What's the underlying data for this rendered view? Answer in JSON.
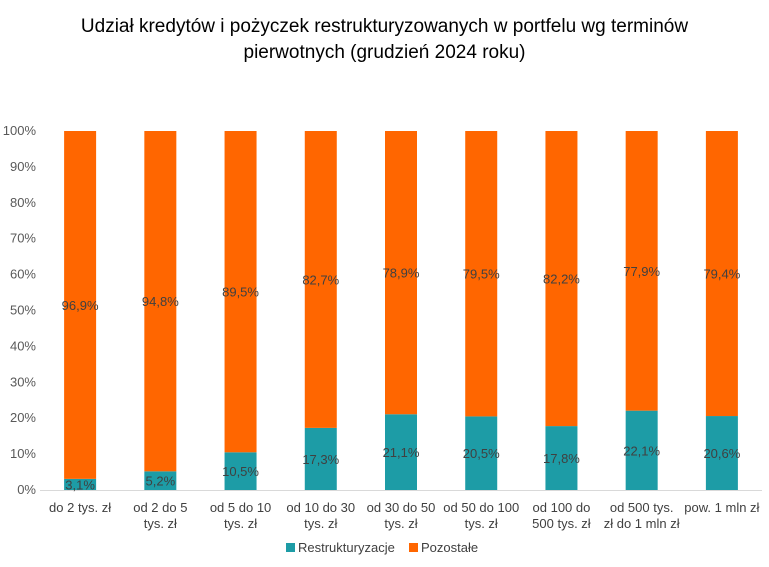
{
  "chart_data": {
    "type": "bar",
    "stacked": true,
    "title_line1": "Udział kredytów i pożyczek restrukturyzowanych w portfelu wg terminów",
    "title_line2": "pierwotnych (grudzień 2024 roku)",
    "categories": [
      [
        "do 2 tys. zł"
      ],
      [
        "od 2 do 5",
        "tys. zł"
      ],
      [
        "od 5 do 10",
        "tys. zł"
      ],
      [
        "od 10 do 30",
        "tys. zł"
      ],
      [
        "od 30 do 50",
        "tys. zł"
      ],
      [
        "od 50 do 100",
        "tys. zł"
      ],
      [
        "od 100 do",
        "500 tys. zł"
      ],
      [
        "od 500 tys.",
        "zł do 1 mln zł"
      ],
      [
        "pow. 1 mln zł"
      ]
    ],
    "series": [
      {
        "name": "Restrukturyzacje",
        "color": "#1d9ca6",
        "values": [
          3.1,
          5.2,
          10.5,
          17.3,
          21.1,
          20.5,
          17.8,
          22.1,
          20.6
        ],
        "labels": [
          "3,1%",
          "5,2%",
          "10,5%",
          "17,3%",
          "21,1%",
          "20,5%",
          "17,8%",
          "22,1%",
          "20,6%"
        ]
      },
      {
        "name": "Pozostałe",
        "color": "#ff6600",
        "values": [
          96.9,
          94.8,
          89.5,
          82.7,
          78.9,
          79.5,
          82.2,
          77.9,
          79.4
        ],
        "labels": [
          "96,9%",
          "94,8%",
          "89,5%",
          "82,7%",
          "78,9%",
          "79,5%",
          "82,2%",
          "77,9%",
          "79,4%"
        ]
      }
    ],
    "yticks": [
      "0%",
      "10%",
      "20%",
      "30%",
      "40%",
      "50%",
      "60%",
      "70%",
      "80%",
      "90%",
      "100%"
    ],
    "ylim": [
      0,
      100
    ],
    "legend_position": "bottom",
    "grid": false
  }
}
